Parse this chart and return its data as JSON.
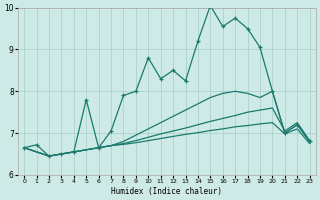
{
  "xlabel": "Humidex (Indice chaleur)",
  "xlim": [
    -0.5,
    23.5
  ],
  "ylim": [
    6,
    10
  ],
  "yticks": [
    6,
    7,
    8,
    9,
    10
  ],
  "xticks": [
    0,
    1,
    2,
    3,
    4,
    5,
    6,
    7,
    8,
    9,
    10,
    11,
    12,
    13,
    14,
    15,
    16,
    17,
    18,
    19,
    20,
    21,
    22,
    23
  ],
  "bg_color": "#ceeae6",
  "grid_color": "#a8ccc8",
  "line_color": "#1a7a6e",
  "line1_x": [
    0,
    1,
    2,
    3,
    4,
    5,
    6,
    7,
    8,
    9,
    10,
    11,
    12,
    13,
    14,
    15,
    16,
    17,
    18,
    19,
    20,
    21,
    22,
    23
  ],
  "line1_y": [
    6.65,
    6.72,
    6.45,
    6.5,
    6.55,
    7.8,
    6.65,
    7.05,
    7.9,
    8.0,
    8.8,
    8.3,
    8.5,
    8.25,
    9.2,
    10.05,
    9.55,
    9.75,
    9.5,
    9.05,
    8.0,
    7.0,
    7.2,
    6.8
  ],
  "line2_x": [
    0,
    2,
    3,
    4,
    5,
    6,
    7,
    8,
    9,
    10,
    11,
    12,
    13,
    14,
    15,
    16,
    17,
    18,
    19,
    20,
    21,
    22,
    23
  ],
  "line2_y": [
    6.65,
    6.45,
    6.5,
    6.55,
    6.6,
    6.65,
    6.7,
    6.8,
    6.95,
    7.1,
    7.25,
    7.4,
    7.55,
    7.7,
    7.85,
    7.95,
    8.0,
    7.95,
    7.85,
    8.0,
    7.0,
    7.2,
    6.8
  ],
  "line3_x": [
    0,
    2,
    3,
    4,
    5,
    6,
    7,
    8,
    9,
    10,
    11,
    12,
    13,
    14,
    15,
    16,
    17,
    18,
    19,
    20,
    21,
    22,
    23
  ],
  "line3_y": [
    6.65,
    6.45,
    6.5,
    6.55,
    6.6,
    6.65,
    6.7,
    6.75,
    6.82,
    6.9,
    6.98,
    7.05,
    7.12,
    7.2,
    7.28,
    7.35,
    7.42,
    7.5,
    7.55,
    7.6,
    7.05,
    7.25,
    6.82
  ],
  "line4_x": [
    0,
    2,
    3,
    4,
    5,
    6,
    7,
    8,
    9,
    10,
    11,
    12,
    13,
    14,
    15,
    16,
    17,
    18,
    19,
    20,
    21,
    22,
    23
  ],
  "line4_y": [
    6.65,
    6.45,
    6.5,
    6.55,
    6.6,
    6.65,
    6.7,
    6.73,
    6.77,
    6.82,
    6.87,
    6.92,
    6.97,
    7.01,
    7.06,
    7.1,
    7.15,
    7.18,
    7.22,
    7.25,
    6.98,
    7.1,
    6.75
  ]
}
